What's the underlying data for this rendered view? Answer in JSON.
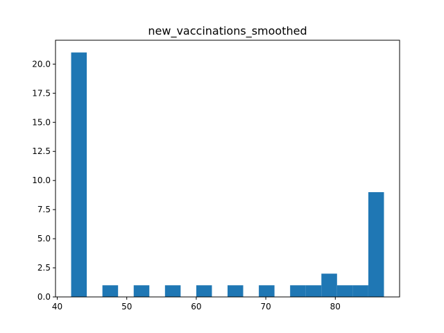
{
  "chart_data": {
    "type": "bar",
    "title": "new_vaccinations_smoothed",
    "xlabel": "",
    "ylabel": "",
    "bin_edges": [
      42,
      44.25,
      46.5,
      48.75,
      51,
      53.25,
      55.5,
      57.75,
      60,
      62.25,
      64.5,
      66.75,
      69,
      71.25,
      73.5,
      75.75,
      78,
      80.25,
      82.5,
      84.75,
      87
    ],
    "values": [
      21,
      0,
      1,
      0,
      1,
      0,
      1,
      0,
      1,
      0,
      1,
      0,
      1,
      0,
      1,
      1,
      2,
      1,
      1,
      9
    ],
    "xlim": [
      39.75,
      89.25
    ],
    "ylim": [
      0,
      22.05
    ],
    "xticks": [
      40,
      50,
      60,
      70,
      80
    ],
    "xtick_labels": [
      "40",
      "50",
      "60",
      "70",
      "80"
    ],
    "yticks": [
      0,
      2.5,
      5,
      7.5,
      10,
      12.5,
      15,
      17.5,
      20
    ],
    "ytick_labels": [
      "0.0",
      "2.5",
      "5.0",
      "7.5",
      "10.0",
      "12.5",
      "15.0",
      "17.5",
      "20.0"
    ],
    "bar_color": "#1f77b4",
    "grid": false,
    "legend": false
  }
}
